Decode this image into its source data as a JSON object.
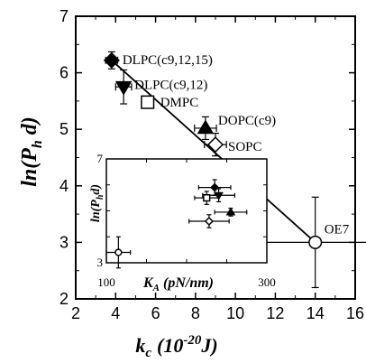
{
  "chart_data": [
    {
      "type": "scatter",
      "xlim": [
        2,
        16
      ],
      "ylim": [
        2,
        7
      ],
      "x_ticks": [
        "2",
        "4",
        "6",
        "8",
        "10",
        "12",
        "14",
        "16"
      ],
      "y_ticks": [
        "2",
        "3",
        "4",
        "5",
        "6",
        "7"
      ],
      "xlabel": "k",
      "xlabel_sub": "c",
      "xlabel_unit_pre": "(10",
      "xlabel_unit_sup": "-20",
      "xlabel_unit_post": "J)",
      "ylabel": "ln(P",
      "ylabel_sub": "h",
      "ylabel_post": " d)",
      "points": [
        {
          "label": "DLPC(c9,12,15)",
          "x": 3.8,
          "y": 6.22,
          "xerr": 0.3,
          "yerr": 0.15,
          "marker": "diamond-filled"
        },
        {
          "label": "DLPC(c9,12)",
          "x": 4.4,
          "y": 5.75,
          "xerr": 0.4,
          "yerr": 0.3,
          "marker": "triangle-down-filled"
        },
        {
          "label": "DMPC",
          "x": 5.6,
          "y": 5.48,
          "xerr": 0.25,
          "yerr": 0.0,
          "marker": "square-open"
        },
        {
          "label": "DOPC(c9)",
          "x": 8.5,
          "y": 5.02,
          "xerr": 0.55,
          "yerr": 0.2,
          "marker": "triangle-up-filled"
        },
        {
          "label": "SOPC",
          "x": 9.0,
          "y": 4.73,
          "xerr": 0.55,
          "yerr": 0.2,
          "marker": "diamond-open"
        },
        {
          "label": "OE7",
          "x": 14.0,
          "y": 3.0,
          "xerr": 3.0,
          "yerr": 0.8,
          "marker": "circle-open"
        }
      ],
      "fit_line": {
        "x": [
          3.8,
          14.0
        ],
        "y": [
          6.22,
          3.0
        ]
      }
    },
    {
      "type": "scatter",
      "xlim": [
        100,
        300
      ],
      "ylim": [
        3,
        7
      ],
      "x_ticks": [
        "100",
        "300"
      ],
      "y_ticks": [
        "3",
        "7"
      ],
      "xlabel": "K",
      "xlabel_sub": "A",
      "xlabel_unit": " (pN/nm)",
      "ylabel": "ln(P",
      "ylabel_sub": "h",
      "ylabel_post": "d)",
      "points": [
        {
          "x": 235,
          "y": 5.9,
          "xerr": 20,
          "yerr": 0.3,
          "marker": "diamond-filled"
        },
        {
          "x": 240,
          "y": 5.6,
          "xerr": 20,
          "yerr": 0.25,
          "marker": "triangle-down-filled"
        },
        {
          "x": 225,
          "y": 5.5,
          "xerr": 15,
          "yerr": 0.25,
          "marker": "square-open"
        },
        {
          "x": 255,
          "y": 4.95,
          "xerr": 20,
          "yerr": 0.15,
          "marker": "triangle-up-filled"
        },
        {
          "x": 228,
          "y": 4.6,
          "xerr": 25,
          "yerr": 0.25,
          "marker": "diamond-open"
        },
        {
          "x": 115,
          "y": 3.4,
          "xerr": 15,
          "yerr": 0.6,
          "marker": "circle-open"
        }
      ]
    }
  ]
}
